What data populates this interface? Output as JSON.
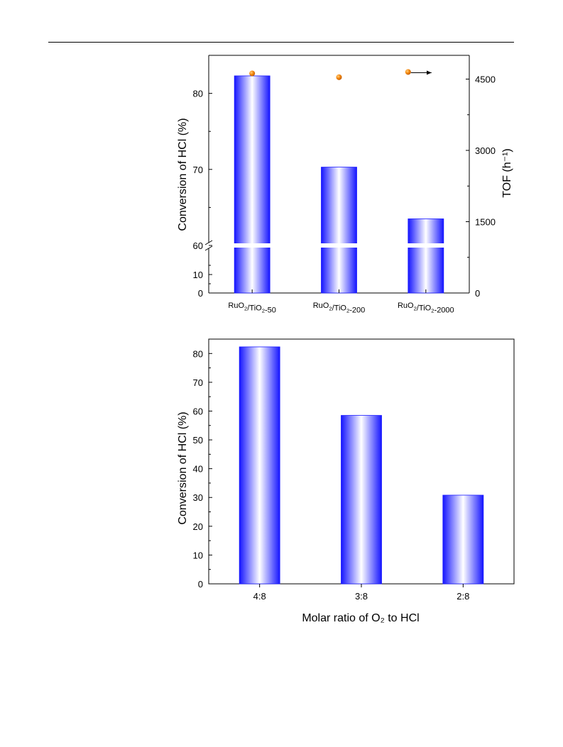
{
  "chart_data": [
    {
      "type": "bar",
      "categories": [
        "RuO2/TiO2-50",
        "RuO2/TiO2-200",
        "RuO2/TiO2-2000"
      ],
      "series": [
        {
          "values": [
            82.3,
            70.3,
            63.5
          ],
          "color": "#1a1aff",
          "axis": "left"
        },
        {
          "values": [
            4620,
            4540,
            4650
          ],
          "color": "#f28c14",
          "axis": "right",
          "type": "scatter"
        }
      ],
      "ylabel": "Conversion of HCl (%)",
      "y2label": "TOF (h⁻¹)",
      "ylim_lower": [
        0,
        20
      ],
      "ylim_upper": [
        60,
        85
      ],
      "y_axis_break": true,
      "y2lim": [
        0,
        5000
      ],
      "yticks_lower": [
        0,
        10
      ],
      "yticks_upper": [
        60,
        70,
        80
      ],
      "y2ticks": [
        0,
        1500,
        3000,
        4500
      ],
      "annotation": "arrow pointing to right axis"
    },
    {
      "type": "bar",
      "categories": [
        "4:8",
        "3:8",
        "2:8"
      ],
      "values": [
        82.3,
        58.5,
        30.8
      ],
      "color": "#1a1aff",
      "xlabel": "Molar ratio of O₂ to HCl",
      "ylabel": "Conversion of HCl (%)",
      "ylim": [
        0,
        85
      ],
      "yticks": [
        0,
        10,
        20,
        30,
        40,
        50,
        60,
        70,
        80
      ]
    }
  ]
}
